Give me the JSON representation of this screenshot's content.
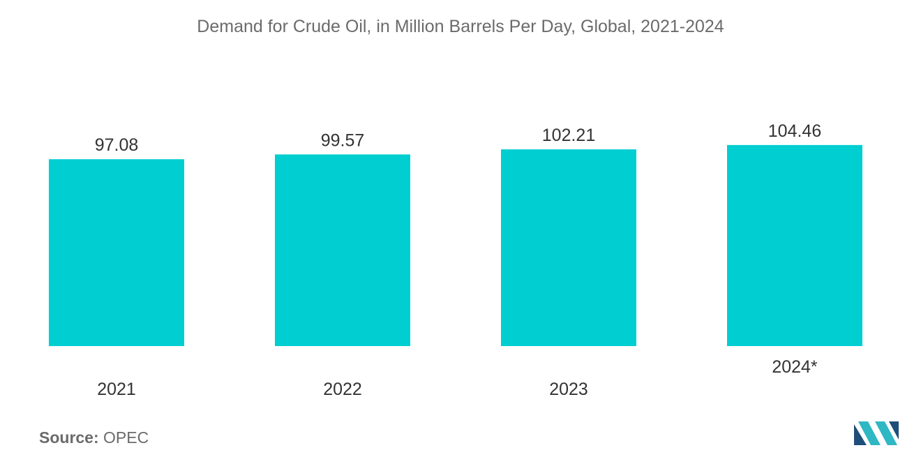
{
  "title": "Demand for Crude Oil, in Million Barrels Per Day, Global, 2021-2024",
  "chart_data": {
    "type": "bar",
    "title": "Demand for Crude Oil, in Million Barrels Per Day, Global, 2021-2024",
    "categories": [
      "2021",
      "2022",
      "2023",
      "2024*"
    ],
    "values": [
      97.08,
      99.57,
      102.21,
      104.46
    ],
    "value_labels": [
      "97.08",
      "99.57",
      "102.21",
      "104.46"
    ],
    "xlabel": "",
    "ylabel": "",
    "bar_color": "#00CED1",
    "grid": false,
    "legend": "none"
  },
  "source": {
    "label": "Source:",
    "value": "OPEC"
  },
  "logo": {
    "icon": "mordor-intelligence-logo",
    "colors": [
      "#1f4e79",
      "#2fb7c4"
    ]
  }
}
